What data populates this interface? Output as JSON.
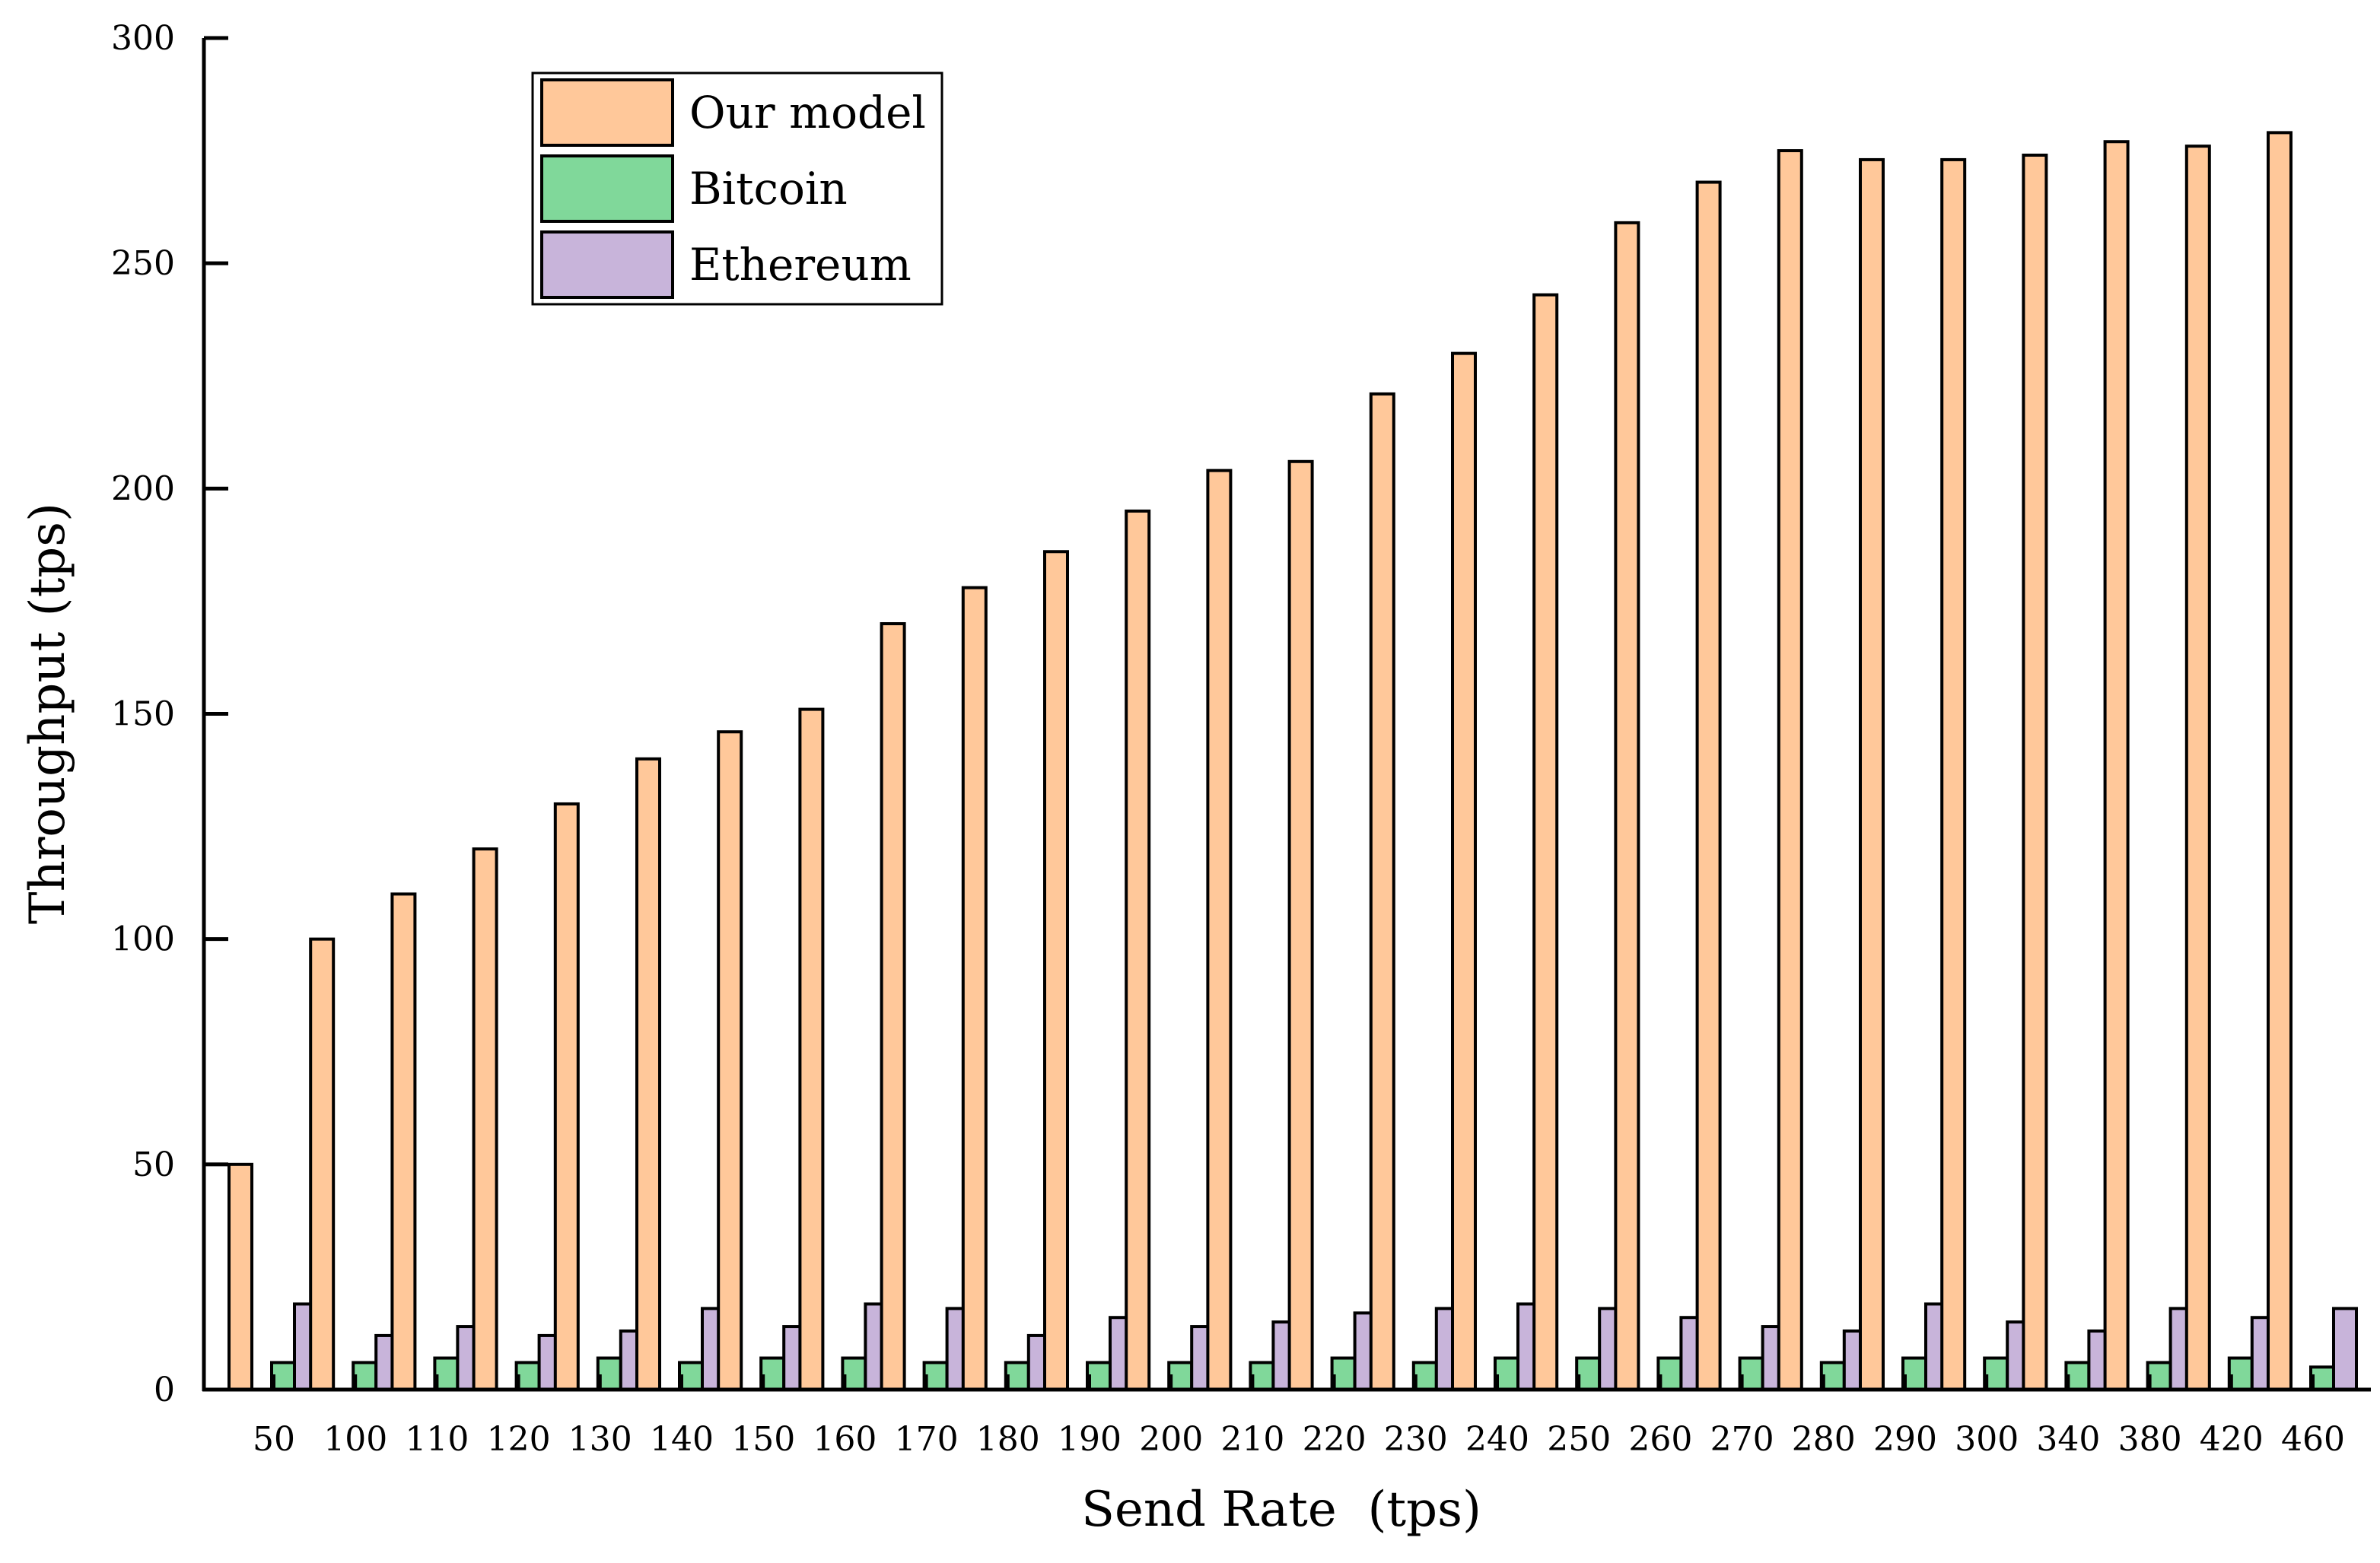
{
  "chart_data": {
    "type": "bar",
    "title": "",
    "xlabel": "Send Rate  (tps)",
    "ylabel": "Throughput (tps)",
    "ylim": [
      0,
      300
    ],
    "yticks": [
      0,
      50,
      100,
      150,
      200,
      250,
      300
    ],
    "categories": [
      "50",
      "100",
      "110",
      "120",
      "130",
      "140",
      "150",
      "160",
      "170",
      "180",
      "190",
      "200",
      "210",
      "220",
      "230",
      "240",
      "250",
      "260",
      "270",
      "280",
      "290",
      "300",
      "340",
      "380",
      "420",
      "460"
    ],
    "series": [
      {
        "name": "Our model",
        "color": "#FFC89A",
        "values": [
          50,
          100,
          110,
          120,
          130,
          140,
          146,
          151,
          170,
          178,
          186,
          195,
          204,
          206,
          221,
          230,
          243,
          259,
          268,
          275,
          273,
          273,
          274,
          277,
          276,
          279
        ]
      },
      {
        "name": "Bitcoin",
        "color": "#80D89A",
        "values": [
          6,
          6,
          7,
          6,
          7,
          6,
          7,
          7,
          6,
          6,
          6,
          6,
          6,
          7,
          6,
          7,
          7,
          7,
          7,
          6,
          7,
          7,
          6,
          6,
          7,
          5
        ]
      },
      {
        "name": "Ethereum",
        "color": "#C8B4DA",
        "values": [
          19,
          12,
          14,
          12,
          13,
          18,
          14,
          19,
          18,
          12,
          16,
          14,
          15,
          17,
          18,
          19,
          18,
          16,
          14,
          13,
          19,
          15,
          13,
          18,
          16,
          18
        ]
      }
    ],
    "legend_position": "top-left",
    "grid": false
  }
}
